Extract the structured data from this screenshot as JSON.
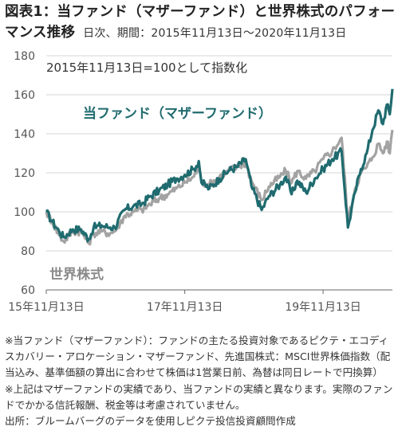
{
  "header": {
    "title_line1": "図表1：当ファンド（マザーファンド）と世界株式のパフォー",
    "title_line2": "マンス推移",
    "subtitle": "日次、期間：2015年11月13日～2020年11月13日"
  },
  "chart_data": {
    "type": "line",
    "annotation": "2015年11月13日=100として指数化",
    "x_tick_labels": [
      "15年11月13日",
      "17年11月13日",
      "19年11月13日"
    ],
    "x_tick_dates": [
      "2015-11-13",
      "2017-11-13",
      "2019-11-13"
    ],
    "x_range": [
      "2015-11-13",
      "2020-11-13"
    ],
    "ylim": [
      60,
      180
    ],
    "y_ticks": [
      60,
      80,
      100,
      120,
      140,
      160,
      180
    ],
    "grid": "horizontal",
    "series": [
      {
        "name": "当ファンド（マザーファンド）",
        "color": "#1f6b6f",
        "points": [
          [
            "2015-11-13",
            100
          ],
          [
            "2015-12-15",
            95
          ],
          [
            "2016-01-20",
            90
          ],
          [
            "2016-02-12",
            87
          ],
          [
            "2016-04-01",
            91
          ],
          [
            "2016-05-15",
            91
          ],
          [
            "2016-06-24",
            86
          ],
          [
            "2016-07-20",
            92
          ],
          [
            "2016-09-01",
            93
          ],
          [
            "2016-10-15",
            92
          ],
          [
            "2016-11-08",
            92
          ],
          [
            "2016-12-31",
            101
          ],
          [
            "2017-02-15",
            103
          ],
          [
            "2017-03-31",
            104
          ],
          [
            "2017-05-15",
            108
          ],
          [
            "2017-07-01",
            111
          ],
          [
            "2017-08-15",
            114
          ],
          [
            "2017-09-30",
            117
          ],
          [
            "2017-11-13",
            119
          ],
          [
            "2017-12-31",
            122
          ],
          [
            "2018-01-26",
            126
          ],
          [
            "2018-02-09",
            115
          ],
          [
            "2018-03-23",
            112
          ],
          [
            "2018-05-15",
            117
          ],
          [
            "2018-07-01",
            121
          ],
          [
            "2018-08-15",
            123
          ],
          [
            "2018-10-01",
            127
          ],
          [
            "2018-10-31",
            113
          ],
          [
            "2018-12-24",
            101
          ],
          [
            "2019-01-31",
            108
          ],
          [
            "2019-03-31",
            114
          ],
          [
            "2019-04-30",
            118
          ],
          [
            "2019-05-31",
            109
          ],
          [
            "2019-06-30",
            116
          ],
          [
            "2019-08-15",
            110
          ],
          [
            "2019-09-30",
            117
          ],
          [
            "2019-11-13",
            122
          ],
          [
            "2019-12-31",
            127
          ],
          [
            "2020-02-19",
            131
          ],
          [
            "2020-03-23",
            92
          ],
          [
            "2020-04-30",
            110
          ],
          [
            "2020-05-31",
            122
          ],
          [
            "2020-06-30",
            130
          ],
          [
            "2020-07-31",
            142
          ],
          [
            "2020-08-31",
            152
          ],
          [
            "2020-09-24",
            145
          ],
          [
            "2020-10-15",
            155
          ],
          [
            "2020-10-30",
            150
          ],
          [
            "2020-11-13",
            163
          ]
        ]
      },
      {
        "name": "世界株式",
        "color": "#a3a3a3",
        "points": [
          [
            "2015-11-13",
            100
          ],
          [
            "2015-12-15",
            95
          ],
          [
            "2016-01-20",
            88
          ],
          [
            "2016-02-12",
            85
          ],
          [
            "2016-04-01",
            90
          ],
          [
            "2016-05-15",
            90
          ],
          [
            "2016-06-24",
            84
          ],
          [
            "2016-07-20",
            89
          ],
          [
            "2016-09-01",
            90
          ],
          [
            "2016-10-15",
            89
          ],
          [
            "2016-11-08",
            90
          ],
          [
            "2016-12-31",
            98
          ],
          [
            "2017-02-15",
            100
          ],
          [
            "2017-03-31",
            101
          ],
          [
            "2017-05-15",
            104
          ],
          [
            "2017-07-01",
            107
          ],
          [
            "2017-08-15",
            109
          ],
          [
            "2017-09-30",
            112
          ],
          [
            "2017-11-13",
            115
          ],
          [
            "2017-12-31",
            118
          ],
          [
            "2018-01-26",
            123
          ],
          [
            "2018-02-09",
            115
          ],
          [
            "2018-03-23",
            114
          ],
          [
            "2018-05-15",
            118
          ],
          [
            "2018-07-01",
            121
          ],
          [
            "2018-08-15",
            123
          ],
          [
            "2018-10-01",
            125
          ],
          [
            "2018-10-31",
            116
          ],
          [
            "2018-12-24",
            106
          ],
          [
            "2019-01-31",
            113
          ],
          [
            "2019-03-31",
            118
          ],
          [
            "2019-04-30",
            121
          ],
          [
            "2019-05-31",
            115
          ],
          [
            "2019-06-30",
            121
          ],
          [
            "2019-08-15",
            117
          ],
          [
            "2019-09-30",
            121
          ],
          [
            "2019-11-13",
            127
          ],
          [
            "2019-12-31",
            131
          ],
          [
            "2020-02-19",
            138
          ],
          [
            "2020-03-23",
            95
          ],
          [
            "2020-04-30",
            112
          ],
          [
            "2020-05-31",
            120
          ],
          [
            "2020-06-30",
            123
          ],
          [
            "2020-07-31",
            128
          ],
          [
            "2020-08-31",
            135
          ],
          [
            "2020-09-24",
            130
          ],
          [
            "2020-10-15",
            136
          ],
          [
            "2020-10-30",
            130
          ],
          [
            "2020-11-13",
            142
          ]
        ]
      }
    ]
  },
  "notes": {
    "text": "※当ファンド（マザーファンド）：ファンドの主たる投資対象であるピクテ・エコディスカバリー・アロケーション・マザーファンド、先進国株式：MSCI世界株価指数（配当込み、基準価額の算出に合わせて株価は1営業日前、為替は同日レートで円換算）\n※上記はマザーファンドの実績であり、当ファンドの実績と異なります。実際のファンドでかかる信託報酬、税金等は考慮されていません。\n出所：ブルームバーグのデータを使用しピクテ投信投資顧問作成"
  }
}
